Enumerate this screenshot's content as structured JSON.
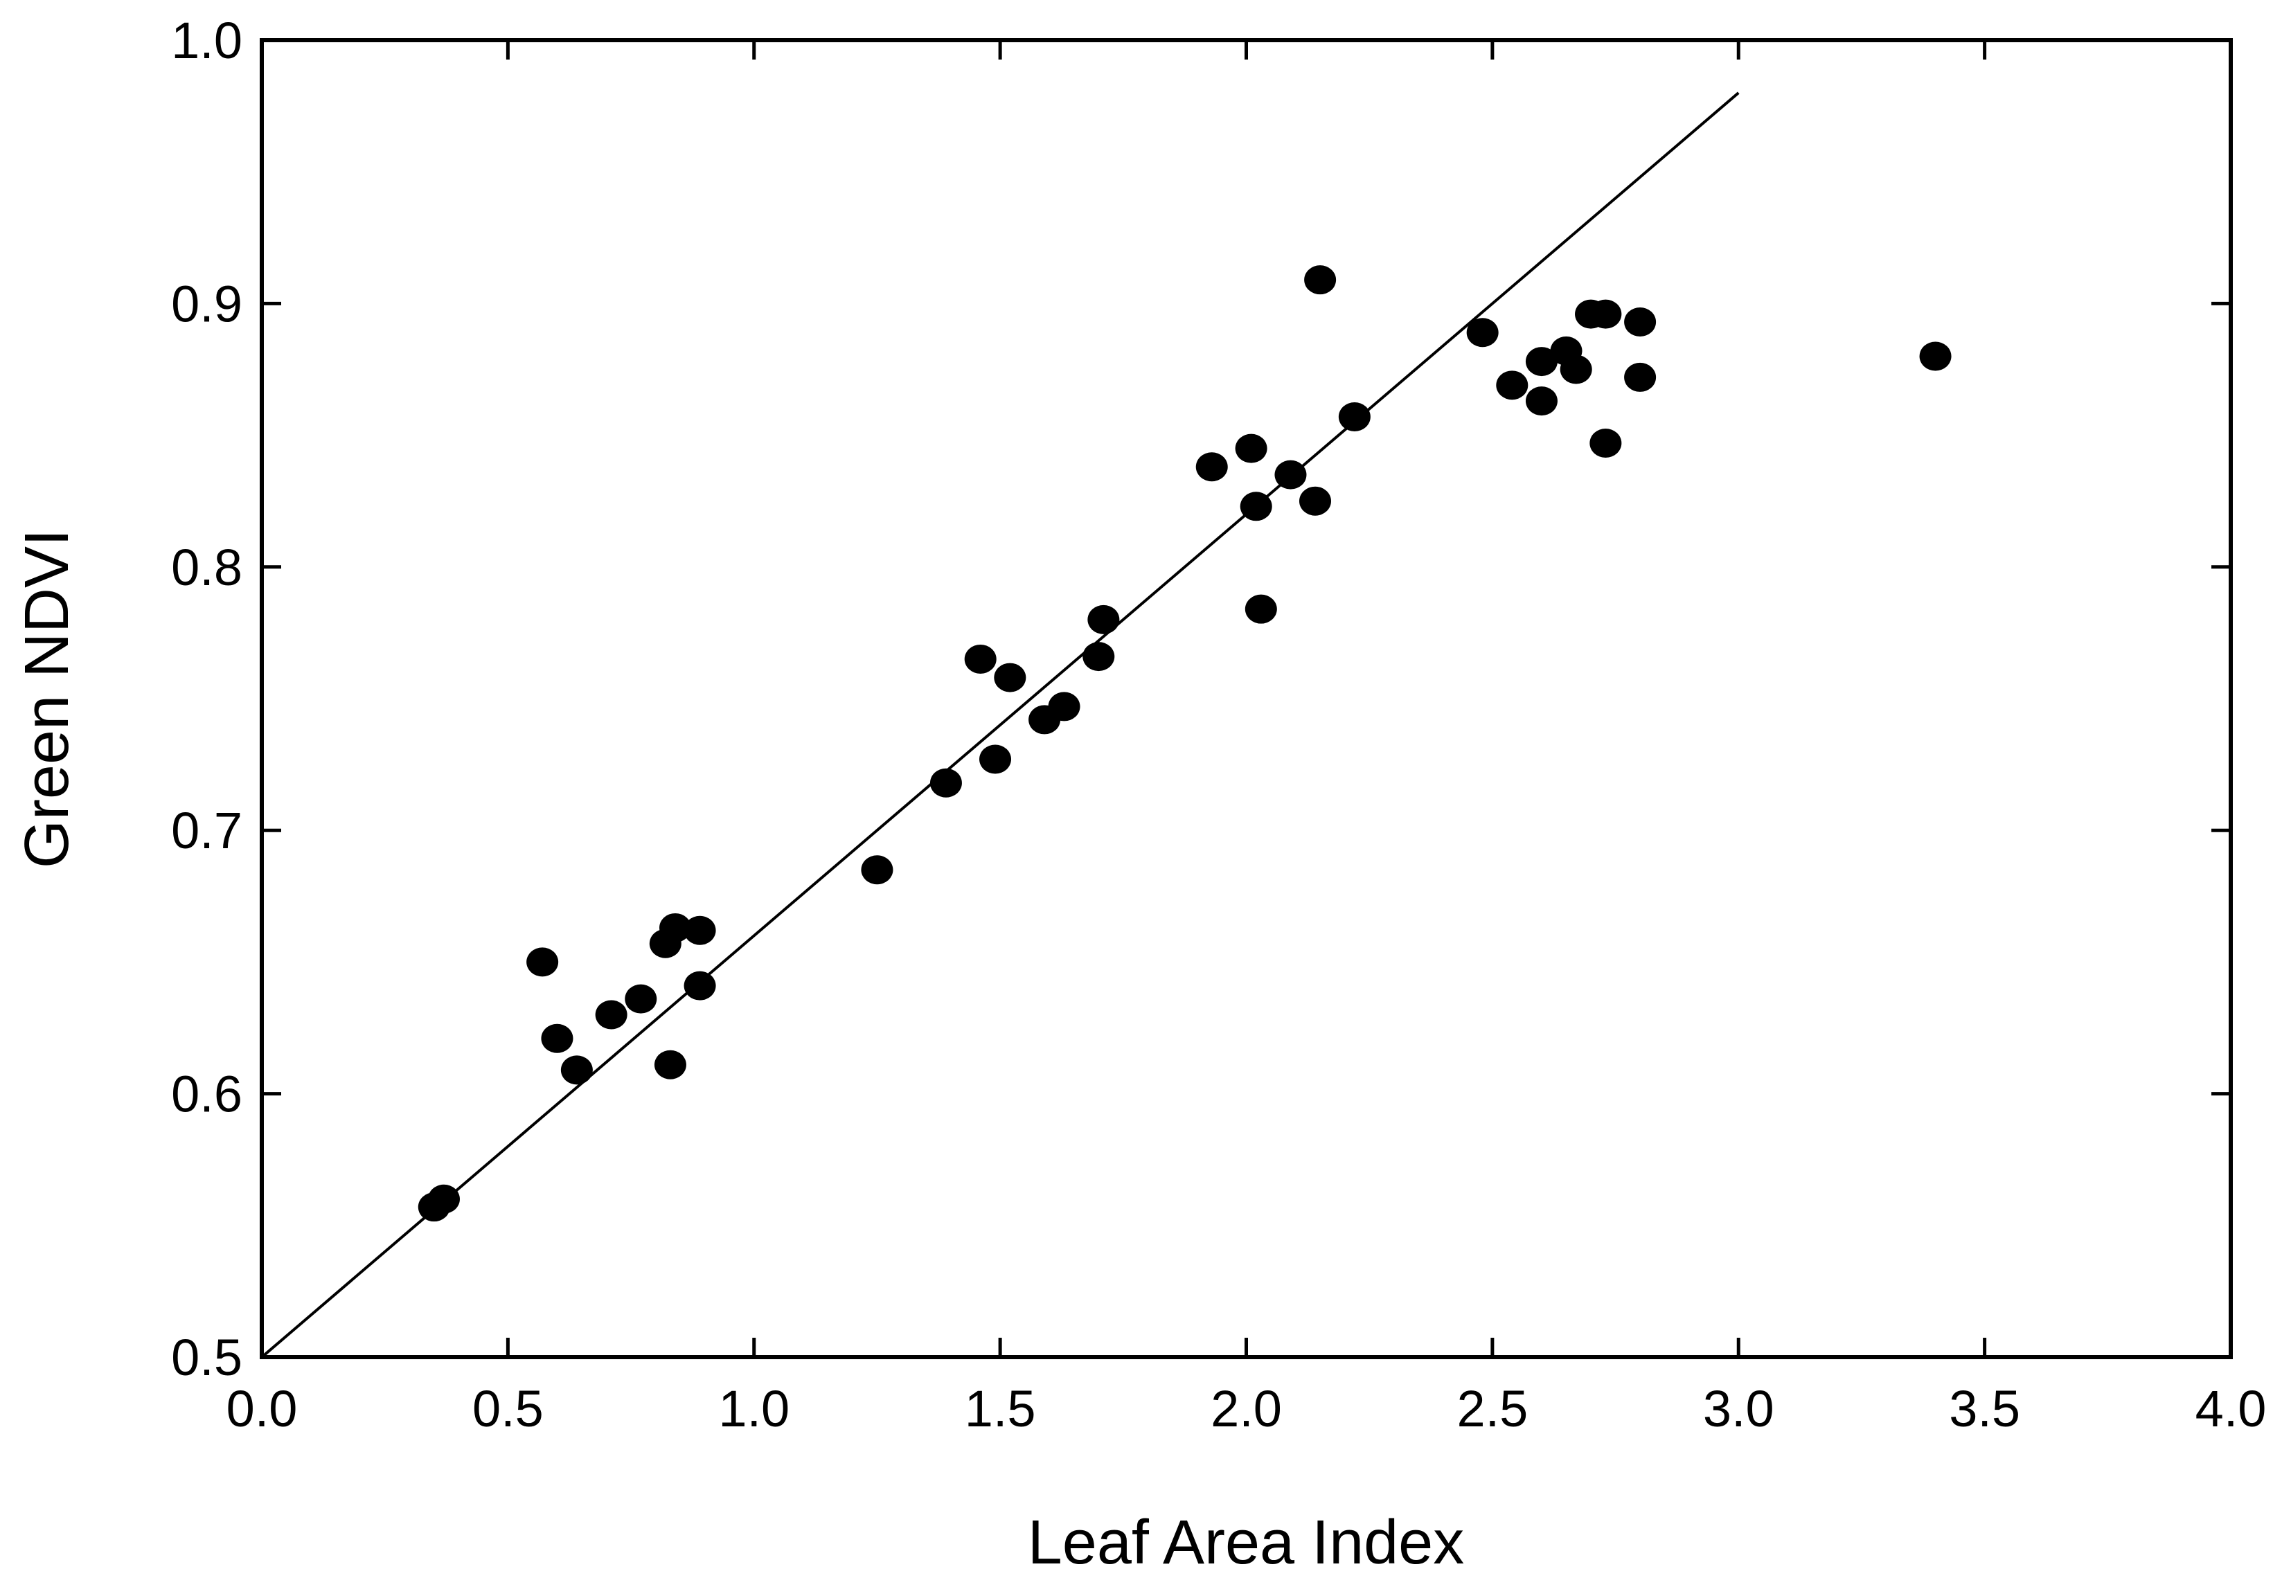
{
  "chart_data": {
    "type": "scatter",
    "title": "",
    "xlabel": "Leaf Area Index",
    "ylabel": "Green NDVI",
    "xlim": [
      0.0,
      4.0
    ],
    "ylim": [
      0.5,
      1.0
    ],
    "xticks": [
      "0.0",
      "0.5",
      "1.0",
      "1.5",
      "2.0",
      "2.5",
      "3.0",
      "3.5",
      "4.0"
    ],
    "yticks": [
      "0.5",
      "0.6",
      "0.7",
      "0.8",
      "0.9",
      "1.0"
    ],
    "grid": false,
    "legend": "none",
    "marker_color": "#000000",
    "line_color": "#000000",
    "fit_line": {
      "x": [
        0.0,
        3.0
      ],
      "y": [
        0.5,
        0.98
      ]
    },
    "points": [
      {
        "x": 0.35,
        "y": 0.557
      },
      {
        "x": 0.37,
        "y": 0.56
      },
      {
        "x": 0.57,
        "y": 0.65
      },
      {
        "x": 0.6,
        "y": 0.621
      },
      {
        "x": 0.64,
        "y": 0.609
      },
      {
        "x": 0.71,
        "y": 0.63
      },
      {
        "x": 0.77,
        "y": 0.636
      },
      {
        "x": 0.82,
        "y": 0.657
      },
      {
        "x": 0.84,
        "y": 0.663
      },
      {
        "x": 0.83,
        "y": 0.611
      },
      {
        "x": 0.89,
        "y": 0.662
      },
      {
        "x": 0.89,
        "y": 0.641
      },
      {
        "x": 1.25,
        "y": 0.685
      },
      {
        "x": 1.39,
        "y": 0.718
      },
      {
        "x": 1.46,
        "y": 0.765
      },
      {
        "x": 1.49,
        "y": 0.727
      },
      {
        "x": 1.52,
        "y": 0.758
      },
      {
        "x": 1.59,
        "y": 0.742
      },
      {
        "x": 1.63,
        "y": 0.747
      },
      {
        "x": 1.7,
        "y": 0.766
      },
      {
        "x": 1.71,
        "y": 0.78
      },
      {
        "x": 1.93,
        "y": 0.838
      },
      {
        "x": 2.01,
        "y": 0.845
      },
      {
        "x": 2.02,
        "y": 0.823
      },
      {
        "x": 2.03,
        "y": 0.784
      },
      {
        "x": 2.09,
        "y": 0.835
      },
      {
        "x": 2.14,
        "y": 0.825
      },
      {
        "x": 2.15,
        "y": 0.909
      },
      {
        "x": 2.22,
        "y": 0.857
      },
      {
        "x": 2.48,
        "y": 0.889
      },
      {
        "x": 2.54,
        "y": 0.869
      },
      {
        "x": 2.6,
        "y": 0.878
      },
      {
        "x": 2.6,
        "y": 0.863
      },
      {
        "x": 2.65,
        "y": 0.882
      },
      {
        "x": 2.67,
        "y": 0.875
      },
      {
        "x": 2.7,
        "y": 0.896
      },
      {
        "x": 2.73,
        "y": 0.896
      },
      {
        "x": 2.73,
        "y": 0.847
      },
      {
        "x": 2.8,
        "y": 0.893
      },
      {
        "x": 2.8,
        "y": 0.872
      },
      {
        "x": 3.4,
        "y": 0.88
      }
    ]
  }
}
